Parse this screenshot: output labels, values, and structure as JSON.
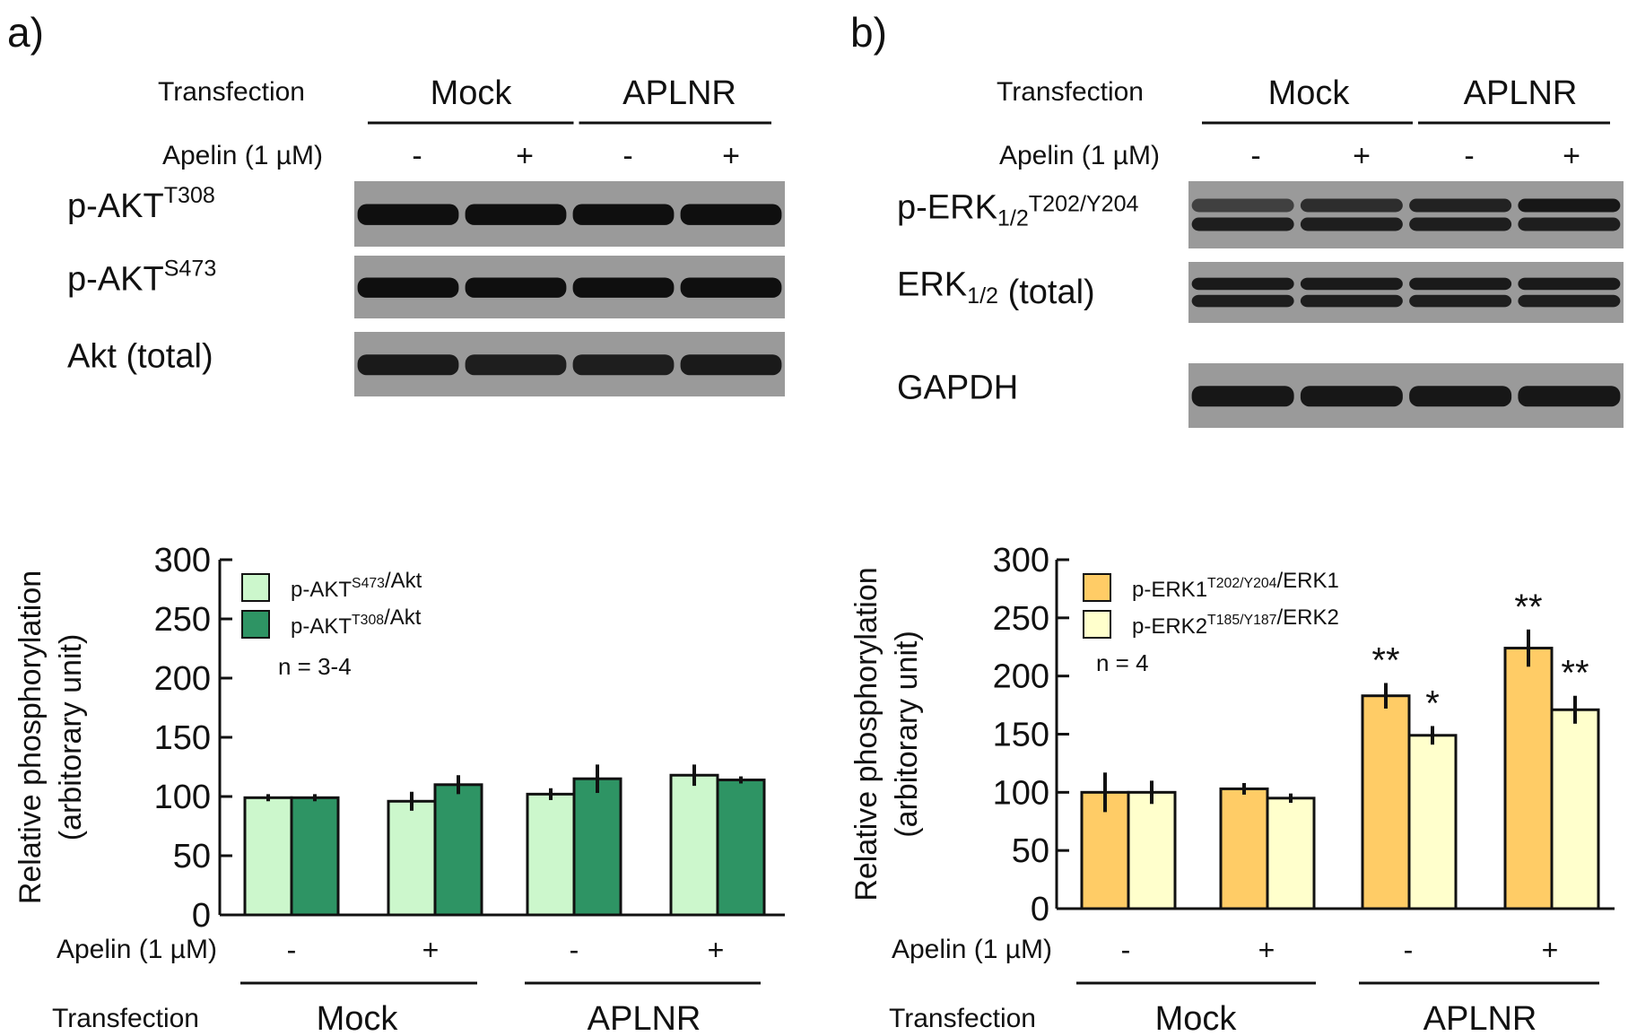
{
  "panels": [
    {
      "id": "a",
      "label": "a)",
      "transfection_label": "Transfection",
      "apelin_label": "Apelin (1 µM)",
      "groups": [
        "Mock",
        "APLNR"
      ],
      "apelin_signs": [
        "-",
        "+",
        "-",
        "+"
      ],
      "blots": [
        {
          "main": "p-AKT",
          "sup": "T308",
          "sub": "",
          "suffix": "",
          "bands": 1,
          "intensity": [
            1,
            1,
            1,
            1
          ]
        },
        {
          "main": "p-AKT",
          "sup": "S473",
          "sub": "",
          "suffix": "",
          "bands": 1,
          "intensity": [
            1,
            1,
            1,
            1
          ]
        },
        {
          "main": "Akt  (total)",
          "sup": "",
          "sub": "",
          "suffix": "",
          "bands": 1,
          "intensity": [
            0.85,
            0.8,
            0.8,
            0.85
          ]
        }
      ],
      "n_label": "n = 3-4"
    },
    {
      "id": "b",
      "label": "b)",
      "transfection_label": "Transfection",
      "apelin_label": "Apelin (1 µM)",
      "groups": [
        "Mock",
        "APLNR"
      ],
      "apelin_signs": [
        "-",
        "+",
        "-",
        "+"
      ],
      "blots": [
        {
          "main": "p-ERK",
          "sup": "T202/Y204",
          "sub": "1/2",
          "suffix": "",
          "bands": 2,
          "intensity": [
            0.35,
            0.6,
            0.75,
            0.9
          ]
        },
        {
          "main": "ERK",
          "sup": "",
          "sub": "1/2",
          "suffix": " (total)",
          "bands": 2,
          "intensity": [
            0.85,
            0.85,
            0.85,
            0.85
          ]
        },
        {
          "main": "GAPDH",
          "sup": "",
          "sub": "",
          "suffix": "",
          "bands": 1,
          "intensity": [
            0.9,
            0.9,
            0.9,
            0.9
          ]
        }
      ],
      "n_label": "n = 4"
    }
  ],
  "chart_data": [
    {
      "type": "bar",
      "ylabel": "Relative phosphorylation",
      "ylabel2": "(arbitorary unit)",
      "ylim": [
        0,
        300
      ],
      "yticks": [
        0,
        50,
        100,
        150,
        200,
        250,
        300
      ],
      "categories": [
        "Mock -",
        "Mock +",
        "APLNR -",
        "APLNR +"
      ],
      "apelin_label": "Apelin (1 µM)",
      "apelin_signs": [
        "-",
        "+",
        "-",
        "+"
      ],
      "transfection_label": "Transfection",
      "groups": [
        "Mock",
        "APLNR"
      ],
      "legend_position": "top-left",
      "series": [
        {
          "name_main": "p-AKT",
          "name_sup": "S473",
          "name_tail": "/Akt",
          "color": "#ccf7cc",
          "values": [
            99,
            96,
            102,
            118
          ],
          "errors": [
            3,
            8,
            5,
            9
          ],
          "sig": [
            "",
            "",
            "",
            ""
          ]
        },
        {
          "name_main": "p-AKT",
          "name_sup": "T308",
          "name_tail": "/Akt",
          "color": "#2e9464",
          "values": [
            99,
            110,
            115,
            114
          ],
          "errors": [
            3,
            8,
            12,
            3
          ],
          "sig": [
            "",
            "",
            "",
            ""
          ]
        }
      ]
    },
    {
      "type": "bar",
      "ylabel": "Relative phosphorylation",
      "ylabel2": "(arbitorary unit)",
      "ylim": [
        0,
        300
      ],
      "yticks": [
        0,
        50,
        100,
        150,
        200,
        250,
        300
      ],
      "categories": [
        "Mock -",
        "Mock +",
        "APLNR -",
        "APLNR +"
      ],
      "apelin_label": "Apelin (1 µM)",
      "apelin_signs": [
        "-",
        "+",
        "-",
        "+"
      ],
      "transfection_label": "Transfection",
      "groups": [
        "Mock",
        "APLNR"
      ],
      "legend_position": "top-left",
      "series": [
        {
          "name_main": "p-ERK1",
          "name_sup": "T202/Y204",
          "name_tail": "/ERK1",
          "color": "#ffcc66",
          "values": [
            100,
            103,
            183,
            224
          ],
          "errors": [
            17,
            5,
            11,
            16
          ],
          "sig": [
            "",
            "",
            "**",
            "**"
          ]
        },
        {
          "name_main": "p-ERK2",
          "name_sup": "T185/Y187",
          "name_tail": "/ERK2",
          "color": "#ffffcc",
          "values": [
            100,
            95,
            149,
            171
          ],
          "errors": [
            10,
            4,
            8,
            12
          ],
          "sig": [
            "",
            "",
            "*",
            "**"
          ]
        }
      ]
    }
  ]
}
